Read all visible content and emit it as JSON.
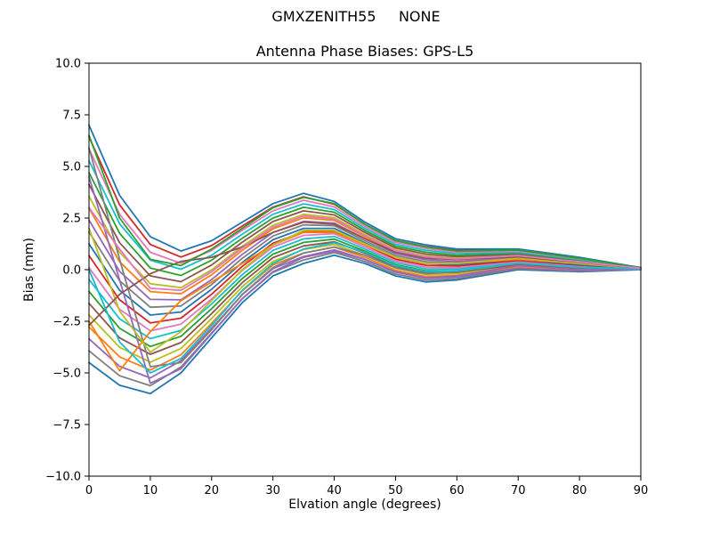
{
  "figure": {
    "suptitle": "GMXZENITH55     NONE"
  },
  "chart_data": {
    "type": "line",
    "suptitle": "GMXZENITH55     NONE",
    "title": "Antenna Phase Biases: GPS-L5",
    "xlabel": "Elvation angle (degrees)",
    "ylabel": "Bias (mm)",
    "xlim": [
      0,
      90
    ],
    "ylim": [
      -10,
      10
    ],
    "xticks": [
      0,
      10,
      20,
      30,
      40,
      50,
      60,
      70,
      80,
      90
    ],
    "yticks": [
      -10,
      -7.5,
      -5,
      -2.5,
      0,
      2.5,
      5,
      7.5,
      10
    ],
    "ytick_labels": [
      "−10.0",
      "−7.5",
      "−5.0",
      "−2.5",
      "0.0",
      "2.5",
      "5.0",
      "7.5",
      "10.0"
    ],
    "grid": false,
    "legend": null,
    "x": [
      0,
      5,
      10,
      15,
      20,
      25,
      30,
      35,
      40,
      45,
      50,
      55,
      60,
      70,
      80,
      90
    ],
    "series": [
      {
        "values": [
          -4.5,
          -5.6,
          -6.0,
          -5.0,
          -3.3,
          -1.6,
          -0.3,
          0.3,
          0.7,
          0.3,
          -0.3,
          -0.6,
          -0.5,
          0.0,
          -0.1,
          0.0
        ]
      },
      {
        "values": [
          -3.93,
          -5.14,
          -5.62,
          -4.71,
          -3.07,
          -1.41,
          -0.13,
          0.47,
          0.83,
          0.4,
          -0.21,
          -0.51,
          -0.43,
          0.05,
          -0.07,
          0.01
        ]
      },
      {
        "values": [
          -3.35,
          -4.68,
          -5.24,
          -4.41,
          -2.83,
          -1.21,
          0.05,
          0.64,
          0.96,
          0.5,
          -0.12,
          -0.42,
          -0.35,
          0.1,
          -0.03,
          0.01
        ]
      },
      {
        "values": [
          -2.78,
          -4.22,
          -4.86,
          -4.12,
          -2.6,
          -1.02,
          0.23,
          0.81,
          1.09,
          0.6,
          -0.03,
          -0.33,
          -0.28,
          0.15,
          0.0,
          0.02
        ]
      },
      {
        "values": [
          -2.2,
          -3.76,
          -4.48,
          -3.82,
          -2.36,
          -0.82,
          0.4,
          0.98,
          1.22,
          0.7,
          0.06,
          -0.24,
          -0.2,
          0.2,
          0.04,
          0.02
        ]
      },
      {
        "values": [
          -1.63,
          -3.3,
          -4.1,
          -3.53,
          -2.13,
          -0.63,
          0.58,
          1.15,
          1.35,
          0.8,
          0.15,
          -0.15,
          -0.13,
          0.25,
          0.08,
          0.03
        ]
      },
      {
        "values": [
          -1.05,
          -2.84,
          -3.72,
          -3.23,
          -1.89,
          -0.43,
          0.75,
          1.32,
          1.48,
          0.9,
          0.24,
          -0.06,
          -0.05,
          0.3,
          0.11,
          0.03
        ]
      },
      {
        "values": [
          -0.48,
          -2.38,
          -3.34,
          -2.94,
          -1.66,
          -0.24,
          0.93,
          1.49,
          1.61,
          1.0,
          0.33,
          0.03,
          0.03,
          0.35,
          0.15,
          0.04
        ]
      },
      {
        "values": [
          0.1,
          -1.92,
          -2.96,
          -2.64,
          -1.42,
          -0.04,
          1.1,
          1.66,
          1.74,
          1.1,
          0.42,
          0.12,
          0.1,
          0.4,
          0.18,
          0.04
        ]
      },
      {
        "values": [
          0.68,
          -1.46,
          -2.58,
          -2.35,
          -1.19,
          0.16,
          1.28,
          1.83,
          1.87,
          1.2,
          0.51,
          0.21,
          0.18,
          0.45,
          0.22,
          0.05
        ]
      },
      {
        "values": [
          1.25,
          -1.0,
          -2.2,
          -2.05,
          -0.95,
          0.35,
          1.45,
          2.0,
          2.0,
          1.3,
          0.6,
          0.3,
          0.25,
          0.5,
          0.25,
          0.05
        ]
      },
      {
        "values": [
          1.83,
          -0.54,
          -1.82,
          -1.76,
          -0.72,
          0.55,
          1.63,
          2.17,
          2.13,
          1.4,
          0.69,
          0.39,
          0.33,
          0.55,
          0.29,
          0.06
        ]
      },
      {
        "values": [
          2.4,
          -0.08,
          -1.44,
          -1.46,
          -0.48,
          0.74,
          1.8,
          2.34,
          2.26,
          1.5,
          0.78,
          0.48,
          0.4,
          0.6,
          0.32,
          0.06
        ]
      },
      {
        "values": [
          2.98,
          0.38,
          -1.06,
          -1.17,
          -0.25,
          0.94,
          1.98,
          2.51,
          2.39,
          1.6,
          0.87,
          0.57,
          0.48,
          0.65,
          0.36,
          0.07
        ]
      },
      {
        "values": [
          3.55,
          0.84,
          -0.68,
          -0.87,
          -0.01,
          1.13,
          2.15,
          2.68,
          2.52,
          1.7,
          0.96,
          0.66,
          0.55,
          0.7,
          0.39,
          0.07
        ]
      },
      {
        "values": [
          4.13,
          1.3,
          -0.3,
          -0.58,
          0.23,
          1.33,
          2.33,
          2.85,
          2.65,
          1.8,
          1.05,
          0.75,
          0.63,
          0.75,
          0.43,
          0.08
        ]
      },
      {
        "values": [
          4.7,
          1.76,
          0.08,
          -0.28,
          0.46,
          1.52,
          2.5,
          3.02,
          2.78,
          1.9,
          1.14,
          0.84,
          0.7,
          0.8,
          0.46,
          0.08
        ]
      },
      {
        "values": [
          5.28,
          2.22,
          0.46,
          0.02,
          0.7,
          1.72,
          2.68,
          3.19,
          2.91,
          2.0,
          1.23,
          0.93,
          0.78,
          0.85,
          0.5,
          0.09
        ]
      },
      {
        "values": [
          5.85,
          2.68,
          0.84,
          0.31,
          0.93,
          1.91,
          2.85,
          3.36,
          3.04,
          2.1,
          1.32,
          1.02,
          0.85,
          0.9,
          0.53,
          0.09
        ]
      },
      {
        "values": [
          6.43,
          3.14,
          1.22,
          0.61,
          1.17,
          2.11,
          3.03,
          3.53,
          3.17,
          2.2,
          1.41,
          1.11,
          0.93,
          0.95,
          0.57,
          0.1
        ]
      },
      {
        "values": [
          7.0,
          3.6,
          1.6,
          0.9,
          1.4,
          2.3,
          3.2,
          3.7,
          3.3,
          2.3,
          1.5,
          1.2,
          1.0,
          1.0,
          0.6,
          0.1
        ]
      },
      {
        "values": [
          5.9,
          0.5,
          -4.7,
          -4.5,
          -2.9,
          -1.2,
          0.1,
          0.8,
          1.1,
          0.7,
          0.1,
          -0.2,
          -0.1,
          0.3,
          0.1,
          0.0
        ]
      },
      {
        "values": [
          4.5,
          -0.5,
          -5.5,
          -4.8,
          -3.1,
          -1.4,
          -0.1,
          0.6,
          0.9,
          0.5,
          -0.1,
          -0.4,
          -0.3,
          0.2,
          0.0,
          0.0
        ]
      },
      {
        "values": [
          -2.5,
          -4.9,
          -3.0,
          -1.5,
          -0.6,
          0.3,
          1.2,
          1.8,
          1.8,
          1.2,
          0.6,
          0.3,
          0.3,
          0.5,
          0.3,
          0.05
        ]
      },
      {
        "values": [
          2.0,
          -2.0,
          -4.0,
          -3.0,
          -1.5,
          0.0,
          1.2,
          1.9,
          1.9,
          1.25,
          0.6,
          0.3,
          0.3,
          0.55,
          0.3,
          0.05
        ]
      },
      {
        "values": [
          -2.7,
          -1.2,
          -0.2,
          0.4,
          0.6,
          1.1,
          1.8,
          2.3,
          2.2,
          1.5,
          0.85,
          0.55,
          0.5,
          0.62,
          0.36,
          0.06
        ]
      },
      {
        "values": [
          6.5,
          2.5,
          0.5,
          0.2,
          1.0,
          2.0,
          3.0,
          3.5,
          3.2,
          2.2,
          1.4,
          1.1,
          0.9,
          0.95,
          0.55,
          0.09
        ]
      },
      {
        "values": [
          0.0,
          -3.5,
          -5.0,
          -4.3,
          -2.7,
          -1.0,
          0.3,
          1.0,
          1.3,
          0.85,
          0.2,
          -0.1,
          -0.05,
          0.32,
          0.12,
          0.03
        ]
      },
      {
        "values": [
          3.0,
          1.0,
          -0.9,
          -1.0,
          -0.1,
          1.05,
          2.05,
          2.6,
          2.45,
          1.65,
          0.92,
          0.62,
          0.52,
          0.68,
          0.38,
          0.07
        ]
      }
    ],
    "colors": [
      "#1f77b4",
      "#ff7f0e",
      "#2ca02c",
      "#d62728",
      "#9467bd",
      "#8c564b",
      "#e377c2",
      "#7f7f7f",
      "#bcbd22",
      "#17becf"
    ]
  }
}
